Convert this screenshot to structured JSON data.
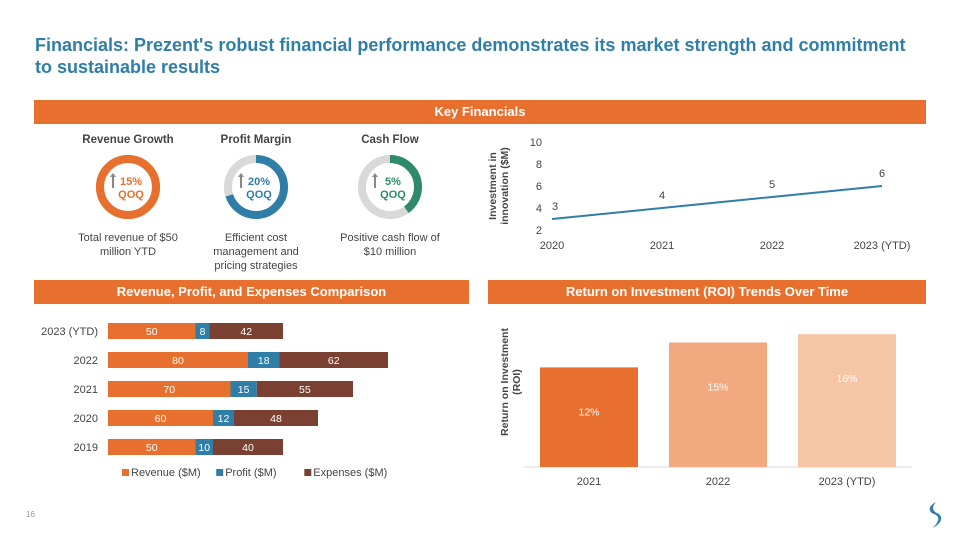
{
  "title": "Financials: Prezent's robust financial performance demonstrates its market strength and commitment to sustainable results",
  "key_financials_header": "Key Financials",
  "kpis": [
    {
      "label": "Revenue Growth",
      "value": "15%",
      "unit": "QOQ",
      "desc": "Total revenue of $50 million YTD",
      "color": "#e8702f",
      "track": "#e8702f",
      "fraction": 1.0
    },
    {
      "label": "Profit Margin",
      "value": "20%",
      "unit": "QOQ",
      "desc": "Efficient cost management and pricing strategies",
      "color": "#2f7ea8",
      "track": "#d9d9d9",
      "fraction": 0.7
    },
    {
      "label": "Cash Flow",
      "value": "5%",
      "unit": "QOQ",
      "desc": "Positive cash flow of $10 million",
      "color": "#2e8a6b",
      "track": "#d9d9d9",
      "fraction": 0.4
    }
  ],
  "comparison_header": "Revenue, Profit, and Expenses Comparison",
  "roi_header": "Return on Investment (ROI) Trends Over Time",
  "page_number": "16",
  "chart_data": [
    {
      "type": "line",
      "x": [
        "2020",
        "2021",
        "2022",
        "2023 (YTD)"
      ],
      "series": [
        {
          "values": [
            3,
            4,
            5,
            6
          ],
          "color": "#2f7ea8"
        }
      ],
      "ylabel": "Investment in innovation ($M)",
      "xlabel": "",
      "ylim": [
        2,
        10
      ],
      "yticks": [
        2,
        4,
        6,
        8,
        10
      ],
      "data_labels": [
        "3",
        "4",
        "5",
        "6"
      ],
      "grid": false
    },
    {
      "type": "bar",
      "orientation": "horizontal",
      "stacked": true,
      "categories": [
        "2023 (YTD)",
        "2022",
        "2021",
        "2020",
        "2019"
      ],
      "series": [
        {
          "name": "Revenue ($M)",
          "values": [
            50,
            80,
            70,
            60,
            50
          ],
          "color": "#e8702f"
        },
        {
          "name": "Profit ($M)",
          "values": [
            8,
            18,
            15,
            12,
            10
          ],
          "color": "#2f7ea8"
        },
        {
          "name": "Expenses ($M)",
          "values": [
            42,
            62,
            55,
            48,
            40
          ],
          "color": "#7a4132"
        }
      ],
      "legend": "bottom",
      "grid": false
    },
    {
      "type": "bar",
      "categories": [
        "2021",
        "2022",
        "2023 (YTD)"
      ],
      "values": [
        12,
        15,
        16
      ],
      "data_labels": [
        "12%",
        "15%",
        "16%"
      ],
      "colors": [
        "#e8702f",
        "#f2a97f",
        "#f6c5a6"
      ],
      "ylabel": "Return on Investment (ROI)",
      "ylim": [
        0,
        17
      ],
      "grid": false
    }
  ]
}
